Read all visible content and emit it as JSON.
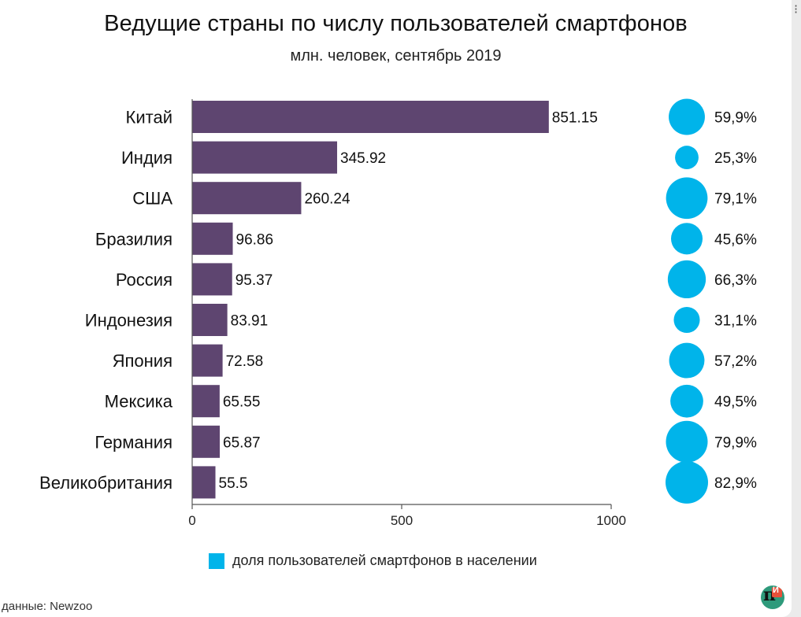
{
  "title": "Ведущие страны по числу пользователей смартфонов",
  "subtitle": "млн. человек, сентябрь 2019",
  "legend_label": "доля пользователей смартфонов в населении",
  "source": "данные: Newzoo",
  "logo_letter": "И",
  "colors": {
    "bar": "#5e4570",
    "bubble": "#00b4ea",
    "axis": "#555555"
  },
  "chart_data": {
    "type": "bar",
    "orientation": "horizontal",
    "categories": [
      "Китай",
      "Индия",
      "США",
      "Бразилия",
      "Россия",
      "Индонезия",
      "Япония",
      "Мексика",
      "Германия",
      "Великобритания"
    ],
    "values": [
      851.15,
      345.92,
      260.24,
      96.86,
      95.37,
      83.91,
      72.58,
      65.55,
      65.87,
      55.5
    ],
    "value_labels": [
      "851.15",
      "345.92",
      "260.24",
      "96.86",
      "95.37",
      "83.91",
      "72.58",
      "65.55",
      "65.87",
      "55.5"
    ],
    "xlim": [
      0,
      1000
    ],
    "xticks": [
      0,
      500,
      1000
    ],
    "xtick_labels": [
      "0",
      "500",
      "1000"
    ],
    "share": {
      "values": [
        59.9,
        25.3,
        79.1,
        45.6,
        66.3,
        31.1,
        57.2,
        49.5,
        79.9,
        82.9
      ],
      "labels": [
        "59,9%",
        "25,3%",
        "79,1%",
        "45,6%",
        "66,3%",
        "31,1%",
        "57,2%",
        "49,5%",
        "79,9%",
        "82,9%"
      ]
    },
    "grid": false
  }
}
